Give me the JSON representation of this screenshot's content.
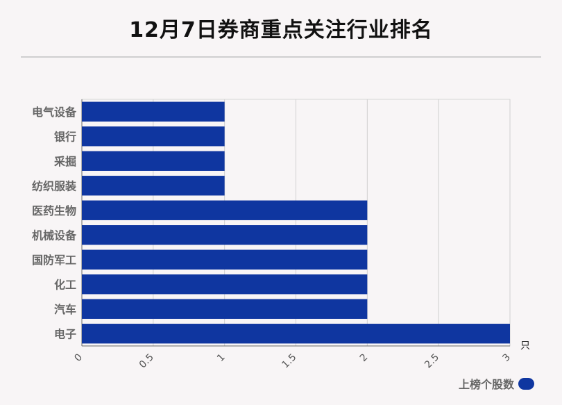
{
  "chart_data": {
    "type": "bar",
    "orientation": "horizontal",
    "title": "12月7日券商重点关注行业排名",
    "categories": [
      "电气设备",
      "银行",
      "采掘",
      "纺织服装",
      "医药生物",
      "机械设备",
      "国防军工",
      "化工",
      "汽车",
      "电子"
    ],
    "series": [
      {
        "name": "上榜个股数",
        "values": [
          1,
          1,
          1,
          1,
          2,
          2,
          2,
          2,
          2,
          3
        ]
      }
    ],
    "xunit": "只",
    "xlim": [
      0,
      3
    ],
    "xticks": [
      "0",
      "0.5",
      "1",
      "1.5",
      "2",
      "2.5",
      "3"
    ],
    "grid": true,
    "legend_position": "bottom-right",
    "bar_color": "#0f36a0"
  }
}
